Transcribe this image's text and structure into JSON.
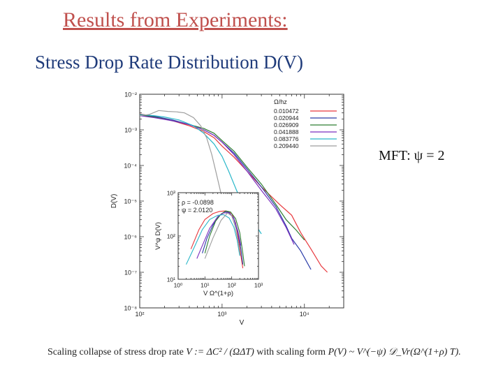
{
  "slide": {
    "title": "Results from Experiments:",
    "subtitle": "Stress Drop Rate Distribution D(V)",
    "mft_note": "MFT: ψ = 2",
    "caption": {
      "part1": "Scaling collapse of stress drop rate ",
      "def_lhs": "V := ",
      "def_rhs": "ΔC² / (ΩΔT)",
      "part2": " with scaling form ",
      "form": "P(V) ~ V^(−ψ) 𝒟_Vr(Ω^(1+ρ) T)."
    }
  },
  "chart_data": [
    {
      "type": "line",
      "xscale": "log",
      "yscale": "log",
      "xlabel": "V",
      "ylabel": "D(V)",
      "xlim": [
        100,
        30000
      ],
      "ylim": [
        1e-08,
        0.01
      ],
      "xticks": [
        100,
        1000,
        10000
      ],
      "xtick_labels": [
        "10²",
        "10³",
        "10⁴"
      ],
      "yticks": [
        1e-08,
        1e-07,
        1e-06,
        1e-05,
        0.0001,
        0.001,
        0.01
      ],
      "ytick_labels": [
        "10⁻⁸",
        "10⁻⁷",
        "10⁻⁶",
        "10⁻⁵",
        "10⁻⁴",
        "10⁻³",
        "10⁻²"
      ],
      "legend_title": "Ω/hz",
      "legend_position": "top-right",
      "series": [
        {
          "name": "0.010472",
          "color": "#e8383d",
          "points": [
            [
              100,
              0.0028
            ],
            [
              150,
              0.0024
            ],
            [
              250,
              0.0018
            ],
            [
              400,
              0.0013
            ],
            [
              600,
              0.0009
            ],
            [
              800,
              0.0006
            ],
            [
              1000,
              0.00035
            ],
            [
              1400,
              0.00017
            ],
            [
              2000,
              7e-05
            ],
            [
              3000,
              2.5e-05
            ],
            [
              5000,
              8e-06
            ],
            [
              7000,
              4e-06
            ],
            [
              9000,
              1.3e-06
            ],
            [
              12000,
              4.5e-07
            ],
            [
              16000,
              1.5e-07
            ],
            [
              19000,
              1e-07
            ]
          ]
        },
        {
          "name": "0.020944",
          "color": "#2a3ba8",
          "points": [
            [
              100,
              0.0027
            ],
            [
              150,
              0.0024
            ],
            [
              250,
              0.0019
            ],
            [
              400,
              0.0014
            ],
            [
              600,
              0.001
            ],
            [
              800,
              0.0007
            ],
            [
              1000,
              0.00045
            ],
            [
              1400,
              0.00022
            ],
            [
              2000,
              8e-05
            ],
            [
              3000,
              2.5e-05
            ],
            [
              4500,
              7e-06
            ],
            [
              6000,
              2e-06
            ],
            [
              7000,
              9e-07
            ],
            [
              9000,
              4e-07
            ],
            [
              12000,
              1.2e-07
            ]
          ]
        },
        {
          "name": "0.026909",
          "color": "#2e7d32",
          "points": [
            [
              100,
              0.0026
            ],
            [
              150,
              0.0023
            ],
            [
              250,
              0.0018
            ],
            [
              400,
              0.0014
            ],
            [
              600,
              0.0011
            ],
            [
              800,
              0.0008
            ],
            [
              1000,
              0.0005
            ],
            [
              1400,
              0.00025
            ],
            [
              2000,
              9e-05
            ],
            [
              3000,
              3e-05
            ],
            [
              4500,
              8e-06
            ],
            [
              6000,
              3e-06
            ],
            [
              8000,
              1.5e-06
            ],
            [
              10000,
              8e-07
            ]
          ]
        },
        {
          "name": "0.041888",
          "color": "#7b2fbf",
          "points": [
            [
              100,
              0.0025
            ],
            [
              150,
              0.0022
            ],
            [
              250,
              0.0018
            ],
            [
              400,
              0.0014
            ],
            [
              600,
              0.001
            ],
            [
              800,
              0.0007
            ],
            [
              1000,
              0.00045
            ],
            [
              1400,
              0.0002
            ],
            [
              2000,
              7e-05
            ],
            [
              3000,
              2e-05
            ],
            [
              4500,
              6e-06
            ],
            [
              6000,
              1.8e-06
            ],
            [
              7500,
              6e-07
            ]
          ]
        },
        {
          "name": "0.083776",
          "color": "#29b7c9",
          "points": [
            [
              100,
              0.0027
            ],
            [
              150,
              0.0025
            ],
            [
              200,
              0.0023
            ],
            [
              300,
              0.0019
            ],
            [
              450,
              0.0013
            ],
            [
              600,
              0.0008
            ],
            [
              800,
              0.0004
            ],
            [
              1000,
              0.00018
            ],
            [
              1200,
              7e-05
            ],
            [
              1500,
              2e-05
            ],
            [
              1800,
              8e-06
            ],
            [
              2200,
              4e-06
            ],
            [
              2600,
              2e-06
            ],
            [
              3000,
              1.2e-06
            ]
          ]
        },
        {
          "name": "0.209440",
          "color": "#9e9e9e",
          "points": [
            [
              100,
              0.0025
            ],
            [
              130,
              0.0027
            ],
            [
              170,
              0.0035
            ],
            [
              220,
              0.0033
            ],
            [
              280,
              0.0032
            ],
            [
              350,
              0.003
            ],
            [
              450,
              0.0022
            ],
            [
              550,
              0.0013
            ],
            [
              650,
              0.0006
            ],
            [
              750,
              0.0002
            ],
            [
              850,
              6e-05
            ],
            [
              950,
              2e-05
            ],
            [
              1050,
              7e-06
            ],
            [
              1150,
              3e-06
            ],
            [
              1300,
              1e-06
            ],
            [
              1500,
              5e-07
            ]
          ]
        }
      ]
    },
    {
      "type": "line",
      "inset": true,
      "xscale": "log",
      "yscale": "log",
      "xlabel": "V Ω^(1+ρ)",
      "ylabel": "V^ψ D(V)",
      "xlim": [
        1,
        1000
      ],
      "ylim": [
        10,
        1000
      ],
      "xtick_labels": [
        "10⁰",
        "10¹",
        "10²",
        "10³"
      ],
      "ytick_labels": [
        "10¹",
        "10²",
        "10³"
      ],
      "annotations": [
        "ρ = -0.0898",
        "ψ = 2.0120"
      ],
      "series": [
        {
          "color": "#e8383d",
          "points": [
            [
              3,
              50
            ],
            [
              6,
              140
            ],
            [
              10,
              240
            ],
            [
              20,
              330
            ],
            [
              35,
              370
            ],
            [
              60,
              380
            ],
            [
              100,
              330
            ],
            [
              140,
              200
            ],
            [
              180,
              80
            ],
            [
              220,
              35
            ],
            [
              260,
              18
            ]
          ]
        },
        {
          "color": "#2a3ba8",
          "points": [
            [
              8,
              40
            ],
            [
              12,
              90
            ],
            [
              20,
              180
            ],
            [
              35,
              300
            ],
            [
              55,
              360
            ],
            [
              80,
              350
            ],
            [
              120,
              250
            ],
            [
              170,
              120
            ],
            [
              220,
              50
            ],
            [
              260,
              22
            ]
          ]
        },
        {
          "color": "#2e7d32",
          "points": [
            [
              10,
              40
            ],
            [
              15,
              100
            ],
            [
              25,
              220
            ],
            [
              40,
              320
            ],
            [
              60,
              380
            ],
            [
              90,
              360
            ],
            [
              140,
              250
            ],
            [
              200,
              120
            ],
            [
              260,
              40
            ],
            [
              300,
              20
            ]
          ]
        },
        {
          "color": "#7b2fbf",
          "points": [
            [
              5,
              30
            ],
            [
              8,
              60
            ],
            [
              15,
              150
            ],
            [
              30,
              280
            ],
            [
              50,
              340
            ],
            [
              80,
              340
            ],
            [
              120,
              260
            ],
            [
              170,
              130
            ],
            [
              220,
              60
            ]
          ]
        },
        {
          "color": "#29b7c9",
          "points": [
            [
              2,
              22
            ],
            [
              4,
              55
            ],
            [
              8,
              140
            ],
            [
              15,
              240
            ],
            [
              30,
              300
            ],
            [
              50,
              310
            ],
            [
              80,
              260
            ],
            [
              120,
              160
            ],
            [
              160,
              80
            ],
            [
              200,
              35
            ]
          ]
        },
        {
          "color": "#9e9e9e",
          "points": [
            [
              10,
              30
            ],
            [
              20,
              90
            ],
            [
              40,
              230
            ],
            [
              70,
              340
            ],
            [
              100,
              290
            ],
            [
              130,
              180
            ],
            [
              170,
              80
            ],
            [
              210,
              35
            ]
          ]
        }
      ]
    }
  ]
}
